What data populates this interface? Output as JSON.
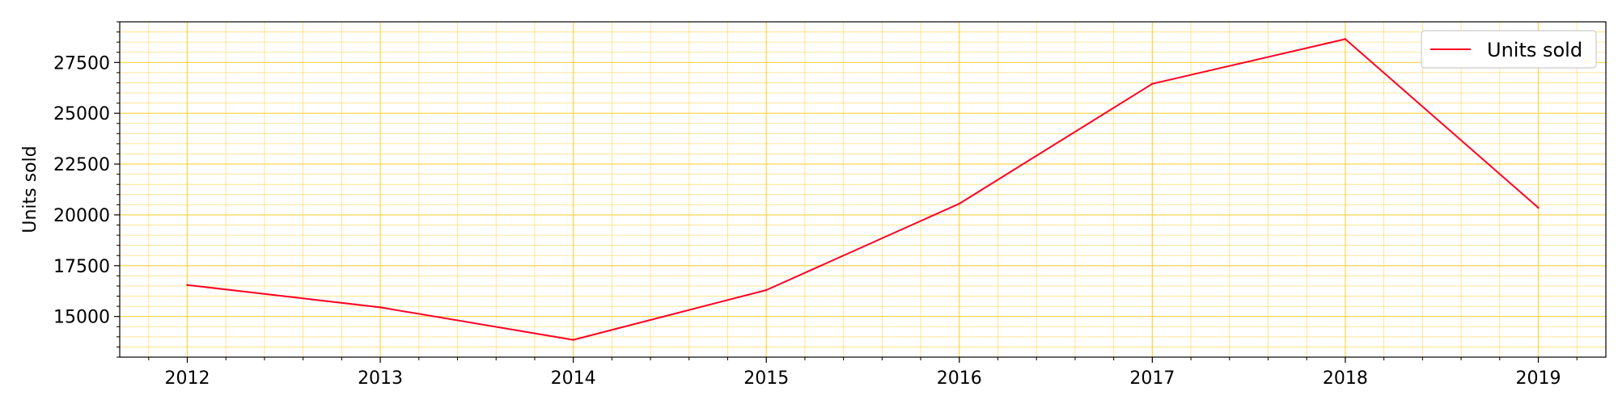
{
  "chart_data": {
    "type": "line",
    "title": "",
    "xlabel": "",
    "ylabel": "Units sold",
    "x": [
      2012,
      2013,
      2014,
      2015,
      2016,
      2017,
      2018,
      2019
    ],
    "series": [
      {
        "name": "Units sold",
        "color": "#ff0022",
        "values": [
          16550,
          15450,
          13850,
          16300,
          20550,
          26450,
          28650,
          20350
        ]
      }
    ],
    "xlim": [
      2011.65,
      2019.35
    ],
    "ylim": [
      13000,
      29500
    ],
    "x_ticks": [
      "2012",
      "2013",
      "2014",
      "2015",
      "2016",
      "2017",
      "2018",
      "2019"
    ],
    "y_ticks": [
      "15000",
      "17500",
      "20000",
      "22500",
      "25000",
      "27500"
    ],
    "grid": true,
    "minor_grid": true,
    "grid_color": "#ffd23f",
    "legend_position": "top-right"
  }
}
